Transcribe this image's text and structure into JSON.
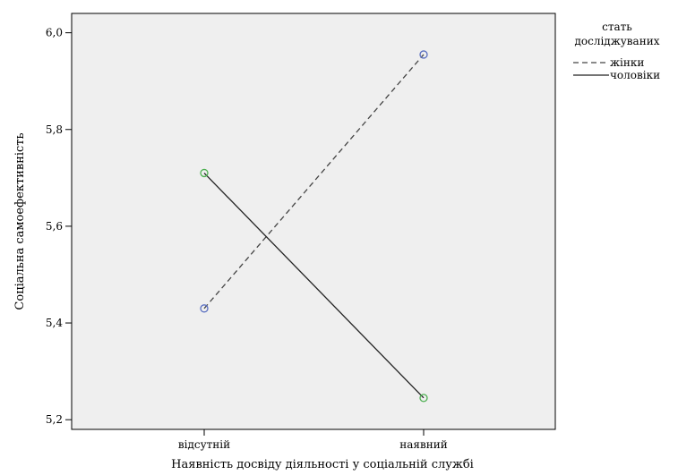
{
  "chart_data": {
    "type": "line",
    "title": "",
    "xlabel": "Наявність досвіду діяльності у соціальній службі",
    "ylabel": "Соціальна самоефективність",
    "categories": [
      "відсутній",
      "наявний"
    ],
    "ylim": [
      5.18,
      6.04
    ],
    "yticks": [
      "6,0",
      "5,8",
      "5,6",
      "5,4",
      "5,2"
    ],
    "ytick_values": [
      6.0,
      5.8,
      5.6,
      5.4,
      5.2
    ],
    "grid": false,
    "legend": {
      "placement": "right",
      "title_line1": "стать",
      "title_line2": "досліджуваних"
    },
    "series": [
      {
        "name": "жінки",
        "values": [
          5.43,
          5.955
        ],
        "line_style": "dashed",
        "line_color": "#444444",
        "marker_color": "#5a6fc0"
      },
      {
        "name": "чоловіки",
        "values": [
          5.71,
          5.245
        ],
        "line_style": "solid",
        "line_color": "#222222",
        "marker_color": "#4caf50"
      }
    ],
    "colors": {
      "plot_bg": "#efefef",
      "frame": "#000000"
    }
  }
}
